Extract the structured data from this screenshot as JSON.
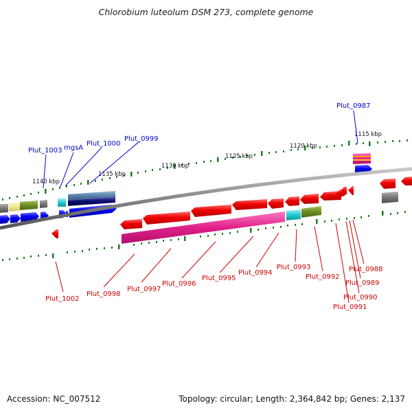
{
  "title": "Chlorobium luteolum DSM 273, complete genome",
  "footer": {
    "accession": "Accession: NC_007512",
    "summary": "Topology: circular; Length: 2,364,842 bp; Genes: 2,137"
  },
  "scale_labels": [
    "1140 kbp",
    "1135 kbp",
    "1130 kbp",
    "1125 kbp",
    "1120 kbp",
    "1115 kbp"
  ],
  "forward_genes": [
    "Plut_1003",
    "mgsA",
    "Plut_1000",
    "Plut_0999",
    "Plut_0987"
  ],
  "reverse_genes": [
    "Plut_1002",
    "Plut_0998",
    "Plut_0997",
    "Plut_0996",
    "Plut_0995",
    "Plut_0994",
    "Plut_0993",
    "Plut_0992",
    "Plut_0991",
    "Plut_0990",
    "Plut_0989",
    "Plut_0988"
  ],
  "colors": {
    "forward_strand": "#0000ee",
    "reverse_strand": "#ee0000",
    "backbone": "#888888",
    "tick": "#227722",
    "magenta": "#e0208a",
    "cyan": "#20c8d0",
    "olive": "#6e8c24",
    "slate": "#5a7fa8",
    "navy": "#0a0a6a",
    "yellow": "#f0e68c",
    "gray": "#777777"
  }
}
